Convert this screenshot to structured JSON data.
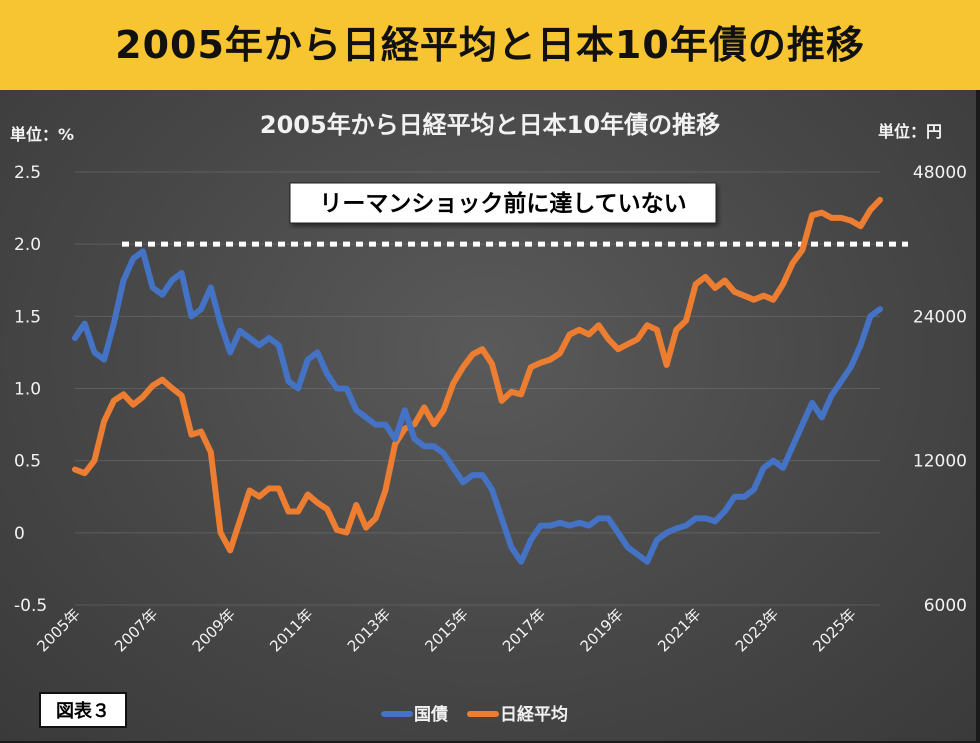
{
  "header": {
    "title": "2005年から日経平均と日本10年債の推移"
  },
  "figure_label": "図表３",
  "colors": {
    "bond": "#4472c4",
    "nikkei": "#ed7d31",
    "banner": "#f7c531",
    "background": "#4a4a4a"
  },
  "chart_data": {
    "type": "line",
    "title": "2005年から日経平均と日本10年債の推移",
    "left_axis": {
      "unit_label": "単位：%",
      "ylim": [
        -0.5,
        2.5
      ],
      "ticks": [
        "2.5",
        "2.0",
        "1.5",
        "1.0",
        "0.5",
        "0",
        "-0.5"
      ]
    },
    "right_axis": {
      "unit_label": "単位：円",
      "ylim": [
        6000,
        48000
      ],
      "ticks": [
        "48000",
        "24000",
        "12000",
        "6000"
      ]
    },
    "x_tick_labels": [
      "2005年",
      "2007年",
      "2009年",
      "2011年",
      "2013年",
      "2015年",
      "2017年",
      "2019年",
      "2021年",
      "2023年",
      "2025年"
    ],
    "annotation": {
      "text": "リーマンショック前に達していない",
      "line_value_pct": 2.0
    },
    "legend": {
      "position": "bottom",
      "entries": [
        "国債",
        "日経平均"
      ]
    },
    "series": [
      {
        "name": "国債",
        "axis": "left",
        "x": [
          2005.0,
          2005.25,
          2005.5,
          2005.75,
          2006.0,
          2006.25,
          2006.5,
          2006.75,
          2007.0,
          2007.25,
          2007.5,
          2007.75,
          2008.0,
          2008.25,
          2008.5,
          2008.75,
          2009.0,
          2009.25,
          2009.5,
          2009.75,
          2010.0,
          2010.25,
          2010.5,
          2010.75,
          2011.0,
          2011.25,
          2011.5,
          2011.75,
          2012.0,
          2012.25,
          2012.5,
          2012.75,
          2013.0,
          2013.25,
          2013.5,
          2013.75,
          2014.0,
          2014.25,
          2014.5,
          2014.75,
          2015.0,
          2015.25,
          2015.5,
          2015.75,
          2016.0,
          2016.25,
          2016.5,
          2016.75,
          2017.0,
          2017.25,
          2017.5,
          2017.75,
          2018.0,
          2018.25,
          2018.5,
          2018.75,
          2019.0,
          2019.25,
          2019.5,
          2019.75,
          2020.0,
          2020.25,
          2020.5,
          2020.75,
          2021.0,
          2021.25,
          2021.5,
          2021.75,
          2022.0,
          2022.25,
          2022.5,
          2022.75,
          2023.0,
          2023.25,
          2023.5,
          2023.75,
          2024.0,
          2024.25,
          2024.5,
          2024.75,
          2025.0,
          2025.25,
          2025.5,
          2025.75
        ],
        "values": [
          1.35,
          1.45,
          1.25,
          1.2,
          1.45,
          1.75,
          1.9,
          1.95,
          1.7,
          1.65,
          1.75,
          1.8,
          1.5,
          1.55,
          1.7,
          1.45,
          1.25,
          1.4,
          1.35,
          1.3,
          1.35,
          1.3,
          1.05,
          1.0,
          1.2,
          1.25,
          1.1,
          1.0,
          1.0,
          0.85,
          0.8,
          0.75,
          0.75,
          0.65,
          0.85,
          0.65,
          0.6,
          0.6,
          0.55,
          0.45,
          0.35,
          0.4,
          0.4,
          0.3,
          0.1,
          -0.1,
          -0.2,
          -0.05,
          0.05,
          0.05,
          0.07,
          0.05,
          0.07,
          0.05,
          0.1,
          0.1,
          0.0,
          -0.1,
          -0.15,
          -0.2,
          -0.05,
          0.0,
          0.03,
          0.05,
          0.1,
          0.1,
          0.08,
          0.15,
          0.25,
          0.25,
          0.3,
          0.45,
          0.5,
          0.45,
          0.6,
          0.75,
          0.9,
          0.8,
          0.95,
          1.05,
          1.15,
          1.3,
          1.5,
          1.55
        ]
      },
      {
        "name": "日経平均",
        "axis": "right",
        "x": [
          2005.0,
          2005.25,
          2005.5,
          2005.75,
          2006.0,
          2006.25,
          2006.5,
          2006.75,
          2007.0,
          2007.25,
          2007.5,
          2007.75,
          2008.0,
          2008.25,
          2008.5,
          2008.75,
          2009.0,
          2009.25,
          2009.5,
          2009.75,
          2010.0,
          2010.25,
          2010.5,
          2010.75,
          2011.0,
          2011.25,
          2011.5,
          2011.75,
          2012.0,
          2012.25,
          2012.5,
          2012.75,
          2013.0,
          2013.25,
          2013.5,
          2013.75,
          2014.0,
          2014.25,
          2014.5,
          2014.75,
          2015.0,
          2015.25,
          2015.5,
          2015.75,
          2016.0,
          2016.25,
          2016.5,
          2016.75,
          2017.0,
          2017.25,
          2017.5,
          2017.75,
          2018.0,
          2018.25,
          2018.5,
          2018.75,
          2019.0,
          2019.25,
          2019.5,
          2019.75,
          2020.0,
          2020.25,
          2020.5,
          2020.75,
          2021.0,
          2021.25,
          2021.5,
          2021.75,
          2022.0,
          2022.25,
          2022.5,
          2022.75,
          2023.0,
          2023.25,
          2023.5,
          2023.75,
          2024.0,
          2024.25,
          2024.5,
          2024.75,
          2025.0,
          2025.25,
          2025.5,
          2025.75
        ],
        "values": [
          11500,
          11300,
          12000,
          14500,
          16000,
          16500,
          15700,
          16300,
          17200,
          17700,
          17000,
          16400,
          13600,
          13800,
          12500,
          8500,
          7800,
          9000,
          10400,
          10100,
          10500,
          10500,
          9400,
          9400,
          10200,
          9800,
          9500,
          8600,
          8500,
          9700,
          8700,
          9100,
          10400,
          13000,
          14000,
          14300,
          15500,
          14300,
          15300,
          17400,
          18800,
          20000,
          20500,
          19100,
          16000,
          16700,
          16500,
          18800,
          19200,
          19500,
          20100,
          22000,
          22500,
          22000,
          23000,
          21500,
          20500,
          21000,
          21500,
          23000,
          22500,
          19000,
          22500,
          23500,
          28000,
          29000,
          27500,
          28500,
          27000,
          26500,
          26000,
          26500,
          26000,
          28000,
          31000,
          33000,
          39000,
          39500,
          38500,
          38500,
          38000,
          37000,
          40000,
          42000
        ]
      }
    ]
  }
}
